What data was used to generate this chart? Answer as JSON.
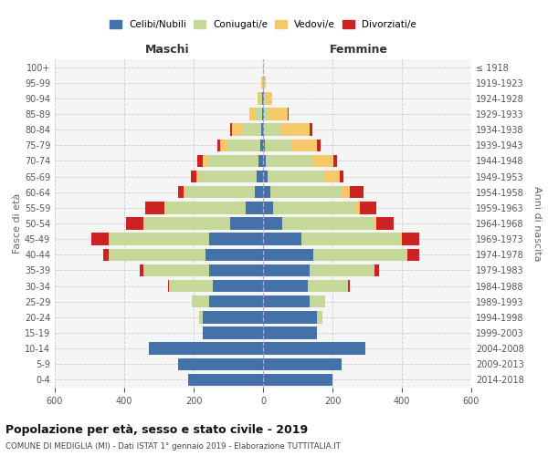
{
  "age_groups": [
    "0-4",
    "5-9",
    "10-14",
    "15-19",
    "20-24",
    "25-29",
    "30-34",
    "35-39",
    "40-44",
    "45-49",
    "50-54",
    "55-59",
    "60-64",
    "65-69",
    "70-74",
    "75-79",
    "80-84",
    "85-89",
    "90-94",
    "95-99",
    "100+"
  ],
  "birth_years": [
    "2014-2018",
    "2009-2013",
    "2004-2008",
    "1999-2003",
    "1994-1998",
    "1989-1993",
    "1984-1988",
    "1979-1983",
    "1974-1978",
    "1969-1973",
    "1964-1968",
    "1959-1963",
    "1954-1958",
    "1949-1953",
    "1944-1948",
    "1939-1943",
    "1934-1938",
    "1929-1933",
    "1924-1928",
    "1919-1923",
    "≤ 1918"
  ],
  "males": {
    "celibi": [
      215,
      245,
      330,
      175,
      175,
      155,
      145,
      155,
      165,
      155,
      95,
      50,
      25,
      18,
      14,
      8,
      5,
      3,
      2,
      1,
      0
    ],
    "coniugati": [
      0,
      0,
      0,
      0,
      10,
      50,
      125,
      190,
      280,
      290,
      250,
      230,
      200,
      165,
      145,
      95,
      55,
      18,
      8,
      2,
      0
    ],
    "vedovi": [
      0,
      0,
      0,
      0,
      0,
      0,
      0,
      0,
      0,
      0,
      0,
      5,
      5,
      10,
      15,
      20,
      30,
      18,
      5,
      2,
      0
    ],
    "divorziati": [
      0,
      0,
      0,
      0,
      0,
      0,
      5,
      10,
      15,
      50,
      50,
      55,
      15,
      15,
      15,
      8,
      5,
      0,
      0,
      0,
      0
    ]
  },
  "females": {
    "nubili": [
      200,
      225,
      295,
      155,
      155,
      135,
      130,
      135,
      145,
      110,
      55,
      30,
      20,
      12,
      8,
      5,
      3,
      2,
      2,
      1,
      0
    ],
    "coniugate": [
      0,
      0,
      0,
      0,
      15,
      45,
      115,
      185,
      270,
      285,
      265,
      235,
      205,
      165,
      135,
      80,
      50,
      15,
      5,
      2,
      0
    ],
    "vedove": [
      0,
      0,
      0,
      0,
      0,
      0,
      0,
      0,
      0,
      5,
      5,
      15,
      25,
      45,
      60,
      70,
      80,
      55,
      20,
      5,
      0
    ],
    "divorziate": [
      0,
      0,
      0,
      0,
      0,
      0,
      5,
      15,
      35,
      50,
      50,
      45,
      40,
      10,
      10,
      10,
      8,
      2,
      0,
      0,
      0
    ]
  },
  "colors": {
    "celibi": "#4472a8",
    "coniugati": "#c5d89a",
    "vedovi": "#f5c96a",
    "divorziati": "#cc2222"
  },
  "xlim": [
    -600,
    600
  ],
  "title": "Popolazione per età, sesso e stato civile - 2019",
  "subtitle": "COMUNE DI MEDIGLIA (MI) - Dati ISTAT 1° gennaio 2019 - Elaborazione TUTTITALIA.IT",
  "ylabel_left": "Fasce di età",
  "ylabel_right": "Anni di nascita",
  "xlabel_left": "Maschi",
  "xlabel_right": "Femmine",
  "legend_labels": [
    "Celibi/Nubili",
    "Coniugati/e",
    "Vedovi/e",
    "Divorziati/e"
  ],
  "xticks": [
    -600,
    -400,
    -200,
    0,
    200,
    400,
    600
  ],
  "bg_color": "#f5f5f5"
}
